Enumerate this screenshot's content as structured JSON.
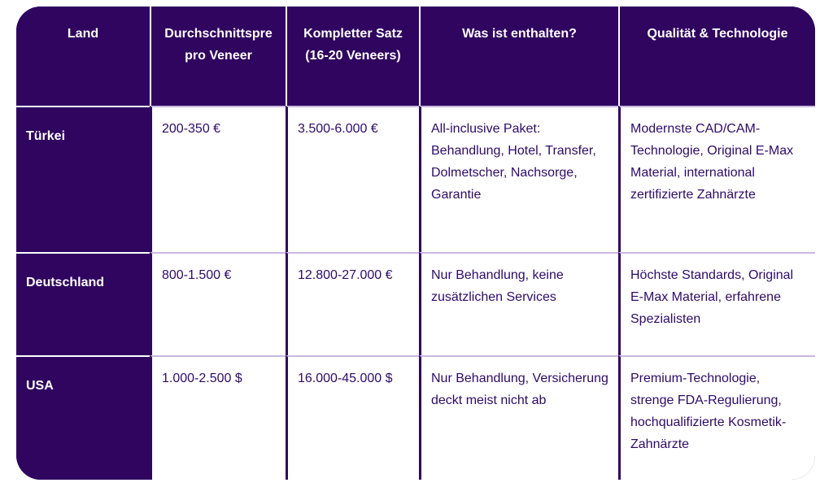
{
  "table": {
    "headers": [
      "Land",
      "Durchschnittspre\npro Veneer",
      "Kompletter Satz (16-20 Veneers)",
      "Was ist enthalten?",
      "Qualität & Technologie"
    ],
    "rows": [
      {
        "country": "Türkei",
        "price_per_veneer": "200-350 €",
        "full_set": "3.500-6.000 €",
        "included": "All-inclusive Paket: Behandlung, Hotel, Transfer, Dolmetscher, Nachsorge, Garantie",
        "quality": "Modernste CAD/CAM-Technologie, Original E-Max Material, international zertifizierte Zahnärzte"
      },
      {
        "country": "Deutschland",
        "price_per_veneer": "800-1.500 €",
        "full_set": "12.800-27.000 €",
        "included": "Nur Behandlung, keine zusätzlichen Services",
        "quality": "Höchste Standards, Original E-Max Material, erfahrene Spezialisten"
      },
      {
        "country": "USA",
        "price_per_veneer": "1.000-2.500 $",
        "full_set": "16.000-45.000 $",
        "included": "Nur Behandlung, Versicherung deckt meist nicht ab",
        "quality": "Premium-Technologie, strenge FDA-Regulierung, hochqualifizierte Kosmetik-Zahnärzte"
      }
    ]
  },
  "colors": {
    "header_bg": "#2f0560",
    "text": "#2e0a6a",
    "cell_bg": "#ffffff"
  }
}
